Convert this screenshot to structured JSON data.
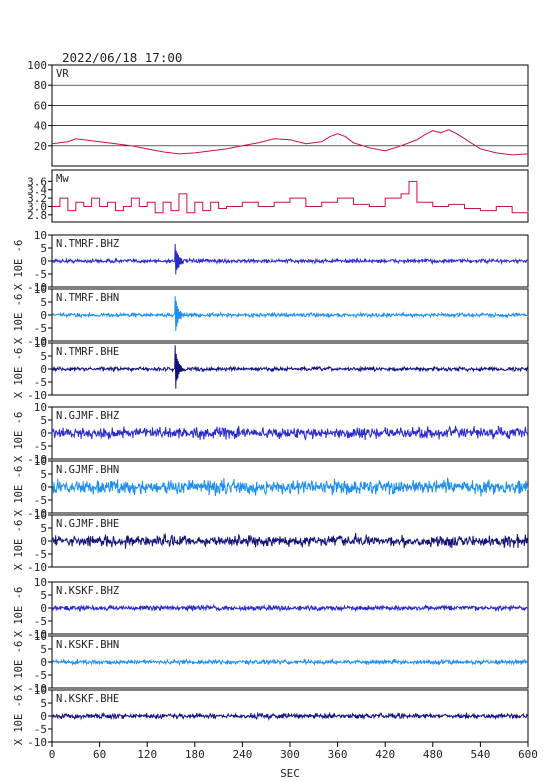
{
  "header": {
    "timestamp": "2022/06/18 17:00"
  },
  "x_axis": {
    "label": "SEC",
    "range": [
      0,
      600
    ],
    "ticks": [
      0,
      60,
      120,
      180,
      240,
      300,
      360,
      420,
      480,
      540,
      600
    ]
  },
  "colors": {
    "frame": "#000000",
    "vr": "#cc1144",
    "mw": "#cc1144",
    "bhz": "#2a2acc",
    "bhn": "#1e8ff0",
    "bhe": "#14147a"
  },
  "chart_data": [
    {
      "type": "line",
      "panel_label": "VR",
      "ylim": [
        0,
        100
      ],
      "yticks": [
        20,
        40,
        60,
        80,
        100
      ],
      "grid": true,
      "x": [
        0,
        20,
        30,
        40,
        60,
        80,
        100,
        120,
        140,
        160,
        180,
        200,
        220,
        240,
        260,
        280,
        300,
        320,
        340,
        350,
        360,
        370,
        380,
        400,
        420,
        440,
        460,
        470,
        480,
        490,
        500,
        510,
        520,
        540,
        560,
        580,
        600
      ],
      "y": [
        22,
        24,
        27,
        26,
        24,
        22,
        20,
        17,
        14,
        12,
        13,
        15,
        17,
        20,
        23,
        27,
        26,
        22,
        24,
        29,
        32,
        29,
        23,
        18,
        15,
        20,
        26,
        31,
        35,
        33,
        36,
        32,
        27,
        17,
        13,
        11,
        12
      ]
    },
    {
      "type": "line",
      "panel_label": "Mw",
      "ylim": [
        2.7,
        3.8
      ],
      "yticks": [
        2.8,
        3.0,
        3.2,
        3.4,
        3.6
      ],
      "x": [
        0,
        10,
        20,
        30,
        40,
        50,
        60,
        70,
        80,
        90,
        100,
        110,
        120,
        130,
        140,
        150,
        160,
        170,
        180,
        190,
        200,
        210,
        220,
        240,
        260,
        280,
        300,
        320,
        340,
        360,
        380,
        400,
        420,
        440,
        450,
        460,
        480,
        500,
        520,
        540,
        560,
        580,
        600
      ],
      "y": [
        3.0,
        3.2,
        2.9,
        3.1,
        3.0,
        3.2,
        3.0,
        3.1,
        2.9,
        3.0,
        3.2,
        3.0,
        3.1,
        2.85,
        3.1,
        2.9,
        3.3,
        2.85,
        3.1,
        2.9,
        3.1,
        2.95,
        3.0,
        3.1,
        3.0,
        3.1,
        3.2,
        3.0,
        3.1,
        3.2,
        3.05,
        3.0,
        3.2,
        3.3,
        3.6,
        3.1,
        3.0,
        3.05,
        2.95,
        2.9,
        3.0,
        2.85,
        2.9
      ]
    },
    {
      "type": "line",
      "panel_label": "N.TMRF.BHZ",
      "color_key": "bhz",
      "ylabel": "X 10E -6",
      "ylim": [
        -10,
        10
      ],
      "yticks": [
        -10,
        -5,
        0,
        5,
        10
      ],
      "event_time": 155,
      "event_peak": 7,
      "noise": 0.35
    },
    {
      "type": "line",
      "panel_label": "N.TMRF.BHN",
      "color_key": "bhn",
      "ylabel": "X 10E -6",
      "ylim": [
        -10,
        10
      ],
      "yticks": [
        -10,
        -5,
        0,
        5,
        10
      ],
      "event_time": 155,
      "event_peak": 8,
      "noise": 0.35
    },
    {
      "type": "line",
      "panel_label": "N.TMRF.BHE",
      "color_key": "bhe",
      "ylabel": "X 10E -6",
      "ylim": [
        -10,
        10
      ],
      "yticks": [
        -10,
        -5,
        0,
        5,
        10
      ],
      "event_time": 155,
      "event_peak": 10,
      "noise": 0.35
    },
    {
      "type": "line",
      "panel_label": "N.GJMF.BHZ",
      "color_key": "bhz",
      "ylabel": "X 10E -6",
      "ylim": [
        -10,
        10
      ],
      "yticks": [
        -10,
        -5,
        0,
        5,
        10
      ],
      "noise": 1.0
    },
    {
      "type": "line",
      "panel_label": "N.GJMF.BHN",
      "color_key": "bhn",
      "ylabel": "X 10E -6",
      "ylim": [
        -10,
        10
      ],
      "yticks": [
        -10,
        -5,
        0,
        5,
        10
      ],
      "noise": 1.3
    },
    {
      "type": "line",
      "panel_label": "N.GJMF.BHE",
      "color_key": "bhe",
      "ylabel": "X 10E -6",
      "ylim": [
        -10,
        10
      ],
      "yticks": [
        -10,
        -5,
        0,
        5,
        10
      ],
      "noise": 1.0
    },
    {
      "type": "line",
      "panel_label": "N.KSKF.BHZ",
      "color_key": "bhz",
      "ylabel": "X 10E -6",
      "ylim": [
        -10,
        10
      ],
      "yticks": [
        -10,
        -5,
        0,
        5,
        10
      ],
      "noise": 0.45
    },
    {
      "type": "line",
      "panel_label": "N.KSKF.BHN",
      "color_key": "bhn",
      "ylabel": "X 10E -6",
      "ylim": [
        -10,
        10
      ],
      "yticks": [
        -10,
        -5,
        0,
        5,
        10
      ],
      "noise": 0.4
    },
    {
      "type": "line",
      "panel_label": "N.KSKF.BHE",
      "color_key": "bhe",
      "ylabel": "X 10E -6",
      "ylim": [
        -10,
        10
      ],
      "yticks": [
        -10,
        -5,
        0,
        5,
        10
      ],
      "noise": 0.45
    }
  ]
}
